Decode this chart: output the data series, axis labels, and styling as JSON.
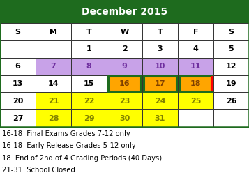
{
  "title": "December 2015",
  "header_bg": "#1e6b1e",
  "header_text": "#ffffff",
  "day_headers": [
    "S",
    "M",
    "T",
    "W",
    "T",
    "F",
    "S"
  ],
  "weeks": [
    [
      "",
      "",
      "1",
      "2",
      "3",
      "4",
      "5"
    ],
    [
      "6",
      "7",
      "8",
      "9",
      "10",
      "11",
      "12"
    ],
    [
      "13",
      "14",
      "15",
      "16",
      "17",
      "18",
      "19"
    ],
    [
      "20",
      "21",
      "22",
      "23",
      "24",
      "25",
      "26"
    ],
    [
      "27",
      "28",
      "29",
      "30",
      "31",
      "",
      ""
    ]
  ],
  "cell_colors": {
    "7": "#c8a2e8",
    "8": "#c8a2e8",
    "9": "#c8a2e8",
    "10": "#c8a2e8",
    "11": "#c8a2e8",
    "16": "#ffa500",
    "17": "#ffa500",
    "18": "#ffa500",
    "21": "#ffff00",
    "22": "#ffff00",
    "23": "#ffff00",
    "24": "#ffff00",
    "25": "#ffff00",
    "28": "#ffff00",
    "29": "#ffff00",
    "30": "#ffff00",
    "31": "#ffff00"
  },
  "purple_text": "#7030a0",
  "orange_text": "#7f3f00",
  "yellow_text": "#7f7f00",
  "black_text": "#000000",
  "green_border_cells": [
    "16",
    "17",
    "18"
  ],
  "red_right_cells": [
    "18"
  ],
  "legend_lines": [
    "16-18  Final Exams Grades 7-12 only",
    "16-18  Early Release Grades 5-12 only",
    "18  End of 2nd of 4 Grading Periods (40 Days)",
    "21-31  School Closed"
  ],
  "outer_border_color": "#1e6b1e",
  "grid_color": "#333333",
  "title_fontsize": 10,
  "header_fontsize": 8,
  "cell_fontsize": 8,
  "legend_fontsize": 7.2
}
